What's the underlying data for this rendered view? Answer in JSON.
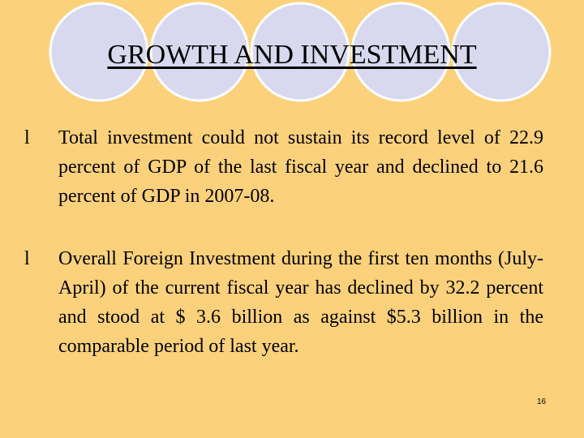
{
  "header": {
    "title": "GROWTH AND INVESTMENT"
  },
  "bullets": [
    {
      "marker": "l",
      "text": "Total investment could not sustain its record level of 22.9 percent of GDP of the last fiscal year and declined to 21.6 percent of GDP in 2007-08."
    },
    {
      "marker": "l",
      "text": "Overall Foreign Investment during the first ten months (July-April) of the current fiscal year has declined by 32.2 percent and stood at $ 3.6 billion as against $5.3 billion in the comparable period of last year."
    }
  ],
  "footer": {
    "page_number": "16"
  }
}
